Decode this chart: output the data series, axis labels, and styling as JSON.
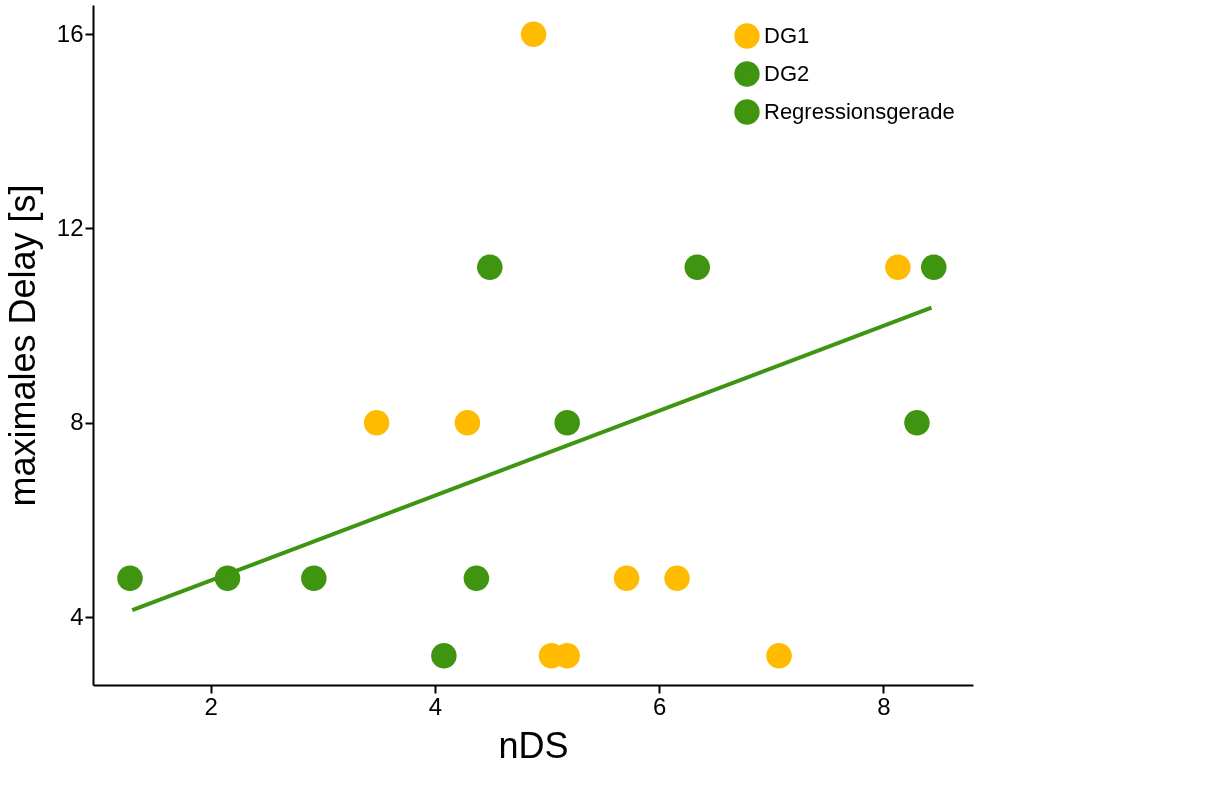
{
  "chart_data": {
    "type": "scatter",
    "xlabel": "nDS",
    "ylabel": "maximales Delay [s]",
    "xlim": [
      0.95,
      8.8
    ],
    "ylim": [
      2.6,
      16.6
    ],
    "xticks": [
      2,
      4,
      6,
      8
    ],
    "yticks": [
      4,
      8,
      12,
      16
    ],
    "grid": false,
    "legend": "top right",
    "series": [
      {
        "name": "DG1",
        "color": "#ffbb00",
        "marker": "circle",
        "x": [
          4.88,
          3.48,
          4.29,
          8.13,
          5.71,
          6.16,
          5.04,
          5.18,
          7.07
        ],
        "values": [
          16,
          8,
          8,
          11.2,
          4.8,
          4.8,
          3.2,
          3.2,
          3.2
        ]
      },
      {
        "name": "DG2",
        "color": "#3f9410",
        "marker": "circle",
        "x": [
          1.28,
          2.15,
          2.92,
          4.37,
          4.08,
          4.49,
          5.18,
          6.34,
          8.45,
          8.3
        ],
        "values": [
          4.8,
          4.8,
          4.8,
          4.8,
          3.2,
          11.2,
          8,
          11.2,
          11.2,
          8
        ]
      },
      {
        "name": "Regressionsgerade",
        "type": "line",
        "color": "#3f9410",
        "line_style": "solid",
        "marker": "none",
        "x": [
          1.3,
          8.43
        ],
        "values": [
          4.14,
          10.37
        ]
      }
    ]
  }
}
